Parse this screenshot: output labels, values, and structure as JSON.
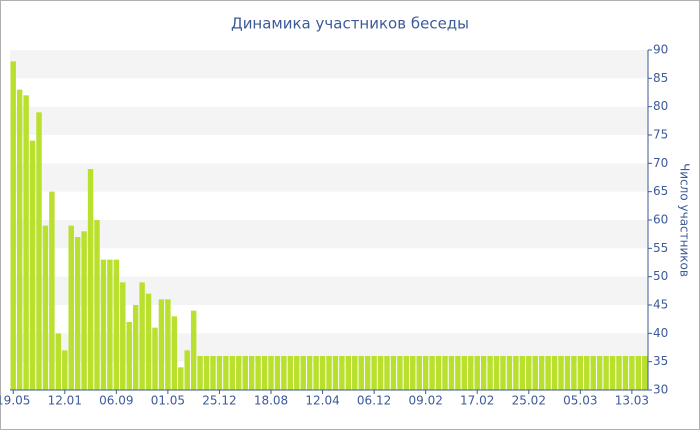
{
  "chart_data": {
    "type": "bar",
    "title": "Динамика участников беседы",
    "y_label": "Число участников",
    "categories": [
      "19.05",
      null,
      null,
      null,
      null,
      null,
      null,
      null,
      "12.01",
      null,
      null,
      null,
      null,
      null,
      null,
      null,
      "06.09",
      null,
      null,
      null,
      null,
      null,
      null,
      null,
      "01.05",
      null,
      null,
      null,
      null,
      null,
      null,
      null,
      "25.12",
      null,
      null,
      null,
      null,
      null,
      null,
      null,
      "18.08",
      null,
      null,
      null,
      null,
      null,
      null,
      null,
      "12.04",
      null,
      null,
      null,
      null,
      null,
      null,
      null,
      "06.12",
      null,
      null,
      null,
      null,
      null,
      null,
      null,
      "09.02",
      null,
      null,
      null,
      null,
      null,
      null,
      null,
      "17.02",
      null,
      null,
      null,
      null,
      null,
      null,
      null,
      "25.02",
      null,
      null,
      null,
      null,
      null,
      null,
      null,
      "05.03",
      null,
      null,
      null,
      null,
      null,
      null,
      null,
      "13.03",
      null,
      null
    ],
    "values": [
      88,
      83,
      82,
      74,
      79,
      59,
      65,
      40,
      37,
      59,
      57,
      58,
      69,
      60,
      53,
      53,
      53,
      49,
      42,
      45,
      49,
      47,
      41,
      46,
      46,
      43,
      34,
      37,
      44,
      36,
      36,
      36,
      36,
      36,
      36,
      36,
      36,
      36,
      36,
      36,
      36,
      36,
      36,
      36,
      36,
      36,
      36,
      36,
      36,
      36,
      36,
      36,
      36,
      36,
      36,
      36,
      36,
      36,
      36,
      36,
      36,
      36,
      36,
      36,
      36,
      36,
      36,
      36,
      36,
      36,
      36,
      36,
      36,
      36,
      36,
      36,
      36,
      36,
      36,
      36,
      36,
      36,
      36,
      36,
      36,
      36,
      36,
      36,
      36,
      36,
      36,
      36,
      36,
      36,
      36,
      36,
      36,
      36,
      36
    ],
    "color": "#b8e02c",
    "ylim": [
      30,
      90
    ],
    "yticks": [
      30,
      35,
      40,
      45,
      50,
      55,
      60,
      65,
      70,
      75,
      80,
      85,
      90
    ],
    "grid": true
  }
}
